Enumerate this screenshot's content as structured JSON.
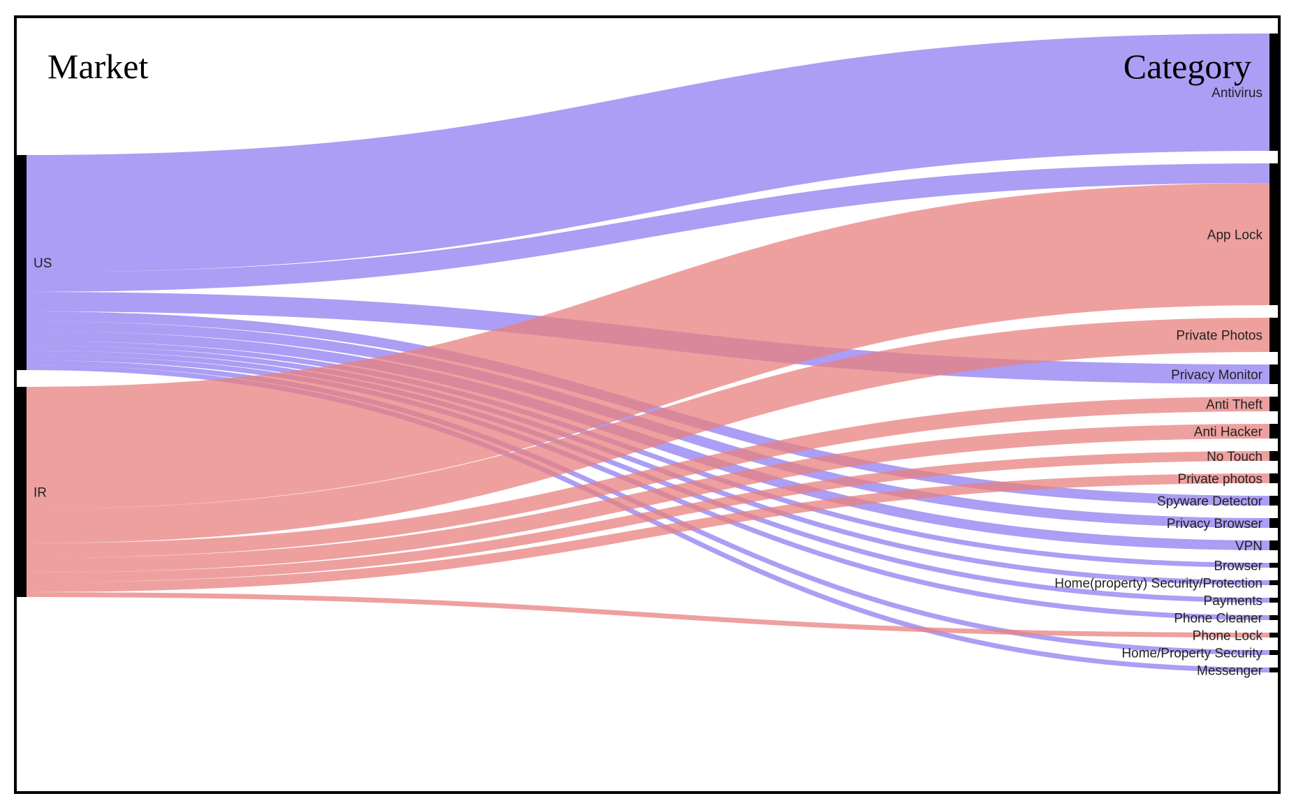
{
  "chart_data": {
    "type": "sankey",
    "source_title": "Market",
    "target_title": "Category",
    "colors": {
      "US": "#8f7df0",
      "IR": "#e8807f",
      "node": "#000000"
    },
    "sources": [
      "US",
      "IR"
    ],
    "targets": [
      "Antivirus",
      "App Lock",
      "Private Photos",
      "Privacy Monitor",
      "Anti Theft",
      "Anti Hacker",
      "No Touch",
      "Private photos",
      "Spyware Detector",
      "Privacy Browser",
      "VPN",
      "Browser",
      "Home(property) Security/Protection",
      "Payments",
      "Phone Cleaner",
      "Phone Lock",
      "Home/Property Security",
      "Messenger"
    ],
    "links": [
      {
        "source": "US",
        "target": "Antivirus",
        "value": 24
      },
      {
        "source": "US",
        "target": "App Lock",
        "value": 4
      },
      {
        "source": "US",
        "target": "Privacy Monitor",
        "value": 4
      },
      {
        "source": "US",
        "target": "Spyware Detector",
        "value": 2
      },
      {
        "source": "US",
        "target": "Privacy Browser",
        "value": 2
      },
      {
        "source": "US",
        "target": "VPN",
        "value": 2
      },
      {
        "source": "US",
        "target": "Browser",
        "value": 1
      },
      {
        "source": "US",
        "target": "Home(property) Security/Protection",
        "value": 1
      },
      {
        "source": "US",
        "target": "Payments",
        "value": 1
      },
      {
        "source": "US",
        "target": "Phone Cleaner",
        "value": 1
      },
      {
        "source": "US",
        "target": "Home/Property Security",
        "value": 1
      },
      {
        "source": "US",
        "target": "Messenger",
        "value": 1
      },
      {
        "source": "IR",
        "target": "App Lock",
        "value": 25
      },
      {
        "source": "IR",
        "target": "Private Photos",
        "value": 7
      },
      {
        "source": "IR",
        "target": "Anti Theft",
        "value": 3
      },
      {
        "source": "IR",
        "target": "Anti Hacker",
        "value": 3
      },
      {
        "source": "IR",
        "target": "No Touch",
        "value": 2
      },
      {
        "source": "IR",
        "target": "Private photos",
        "value": 2
      },
      {
        "source": "IR",
        "target": "Phone Lock",
        "value": 1
      }
    ]
  }
}
